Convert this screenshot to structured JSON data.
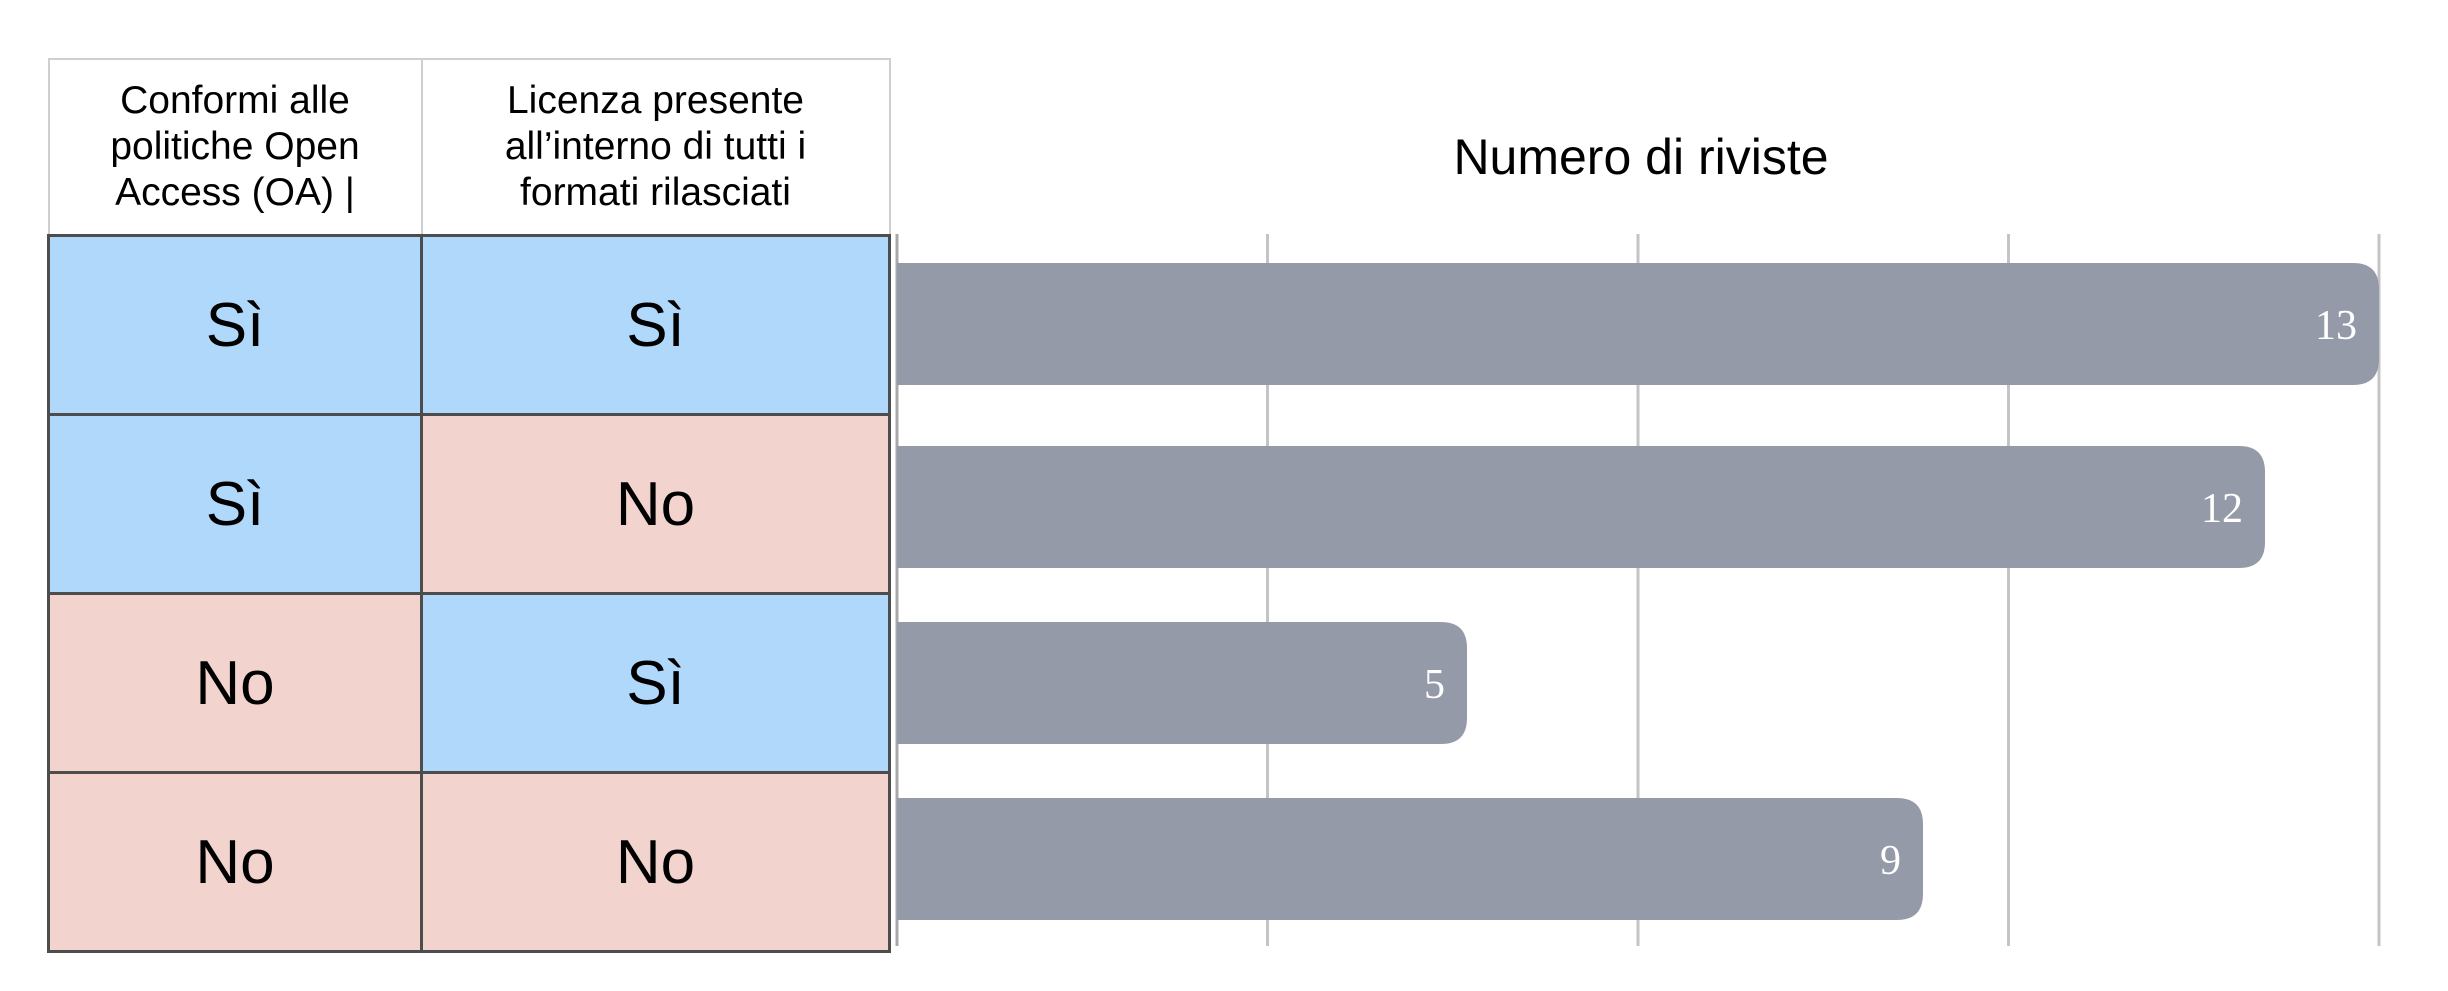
{
  "table": {
    "headers": [
      "Conformi alle politiche Open Access (OA) |",
      "Licenza presente all’interno di tutti i formati rilasciati"
    ],
    "rows": [
      [
        "Sì",
        "Sì"
      ],
      [
        "Sì",
        "No"
      ],
      [
        "No",
        "Sì"
      ],
      [
        "No",
        "No"
      ]
    ]
  },
  "colors": {
    "yes_cell": "#b0d8fb",
    "no_cell": "#f2d3cd",
    "bar": "#959aa8",
    "label": "#ffffff"
  },
  "chart_data": {
    "type": "bar",
    "orientation": "horizontal",
    "title": "Numero di riviste",
    "categories": [
      "Sì / Sì",
      "Sì / No",
      "No / Sì",
      "No / No"
    ],
    "values": [
      13,
      12,
      5,
      9
    ],
    "xlim": [
      0,
      13
    ],
    "grid": true,
    "data_labels": true
  }
}
